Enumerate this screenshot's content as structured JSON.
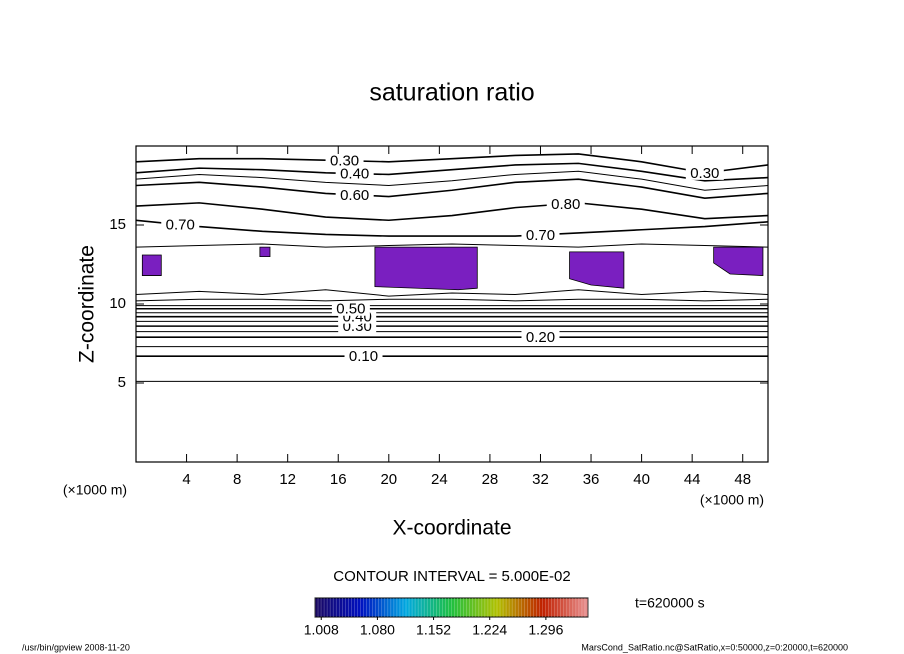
{
  "chart_data": {
    "type": "contour",
    "title": "saturation ratio",
    "x_label": "X-coordinate",
    "y_label": "Z-coordinate",
    "x_unit": "(×1000 m)",
    "y_unit": "(×1000 m)",
    "xlim": [
      0,
      50
    ],
    "ylim": [
      0,
      20
    ],
    "xticks": [
      4,
      8,
      12,
      16,
      20,
      24,
      28,
      32,
      36,
      40,
      44,
      48
    ],
    "yticks": [
      5,
      10,
      15
    ],
    "line_color": "#000000",
    "contour_x": [
      0,
      5,
      10,
      15,
      20,
      25,
      30,
      35,
      40,
      45,
      50
    ],
    "contours": [
      {
        "level": 0.05,
        "z": [
          5.1,
          5.1,
          5.1,
          5.1,
          5.1,
          5.1,
          5.1,
          5.1,
          5.1,
          5.1,
          5.1
        ]
      },
      {
        "level": 0.1,
        "label": "0.10",
        "label_x": [
          18
        ],
        "z": [
          6.7,
          6.7,
          6.7,
          6.7,
          6.7,
          6.7,
          6.7,
          6.7,
          6.7,
          6.7,
          6.7
        ]
      },
      {
        "level": 0.15,
        "z": [
          7.3,
          7.3,
          7.3,
          7.3,
          7.3,
          7.3,
          7.3,
          7.3,
          7.3,
          7.3,
          7.3
        ]
      },
      {
        "level": 0.2,
        "label": "0.20",
        "label_x": [
          32
        ],
        "z": [
          7.9,
          7.9,
          7.9,
          7.9,
          7.9,
          7.9,
          7.9,
          7.9,
          7.9,
          7.9,
          7.9
        ]
      },
      {
        "level": 0.25,
        "z": [
          8.25,
          8.25,
          8.25,
          8.25,
          8.25,
          8.25,
          8.25,
          8.25,
          8.25,
          8.25,
          8.25
        ]
      },
      {
        "level": 0.3,
        "label": "0.30",
        "label_x": [
          17.5
        ],
        "z": [
          8.6,
          8.6,
          8.6,
          8.6,
          8.6,
          8.6,
          8.6,
          8.6,
          8.6,
          8.6,
          8.6
        ]
      },
      {
        "level": 0.35,
        "z": [
          8.9,
          8.9,
          8.9,
          8.9,
          8.9,
          8.9,
          8.9,
          8.9,
          8.9,
          8.9,
          8.9
        ]
      },
      {
        "level": 0.4,
        "label": "0.40",
        "label_x": [
          17.5
        ],
        "z": [
          9.2,
          9.2,
          9.2,
          9.2,
          9.2,
          9.2,
          9.2,
          9.2,
          9.2,
          9.2,
          9.2
        ]
      },
      {
        "level": 0.45,
        "z": [
          9.45,
          9.45,
          9.45,
          9.45,
          9.45,
          9.45,
          9.45,
          9.45,
          9.45,
          9.45,
          9.45
        ]
      },
      {
        "level": 0.5,
        "label": "0.50",
        "label_x": [
          17
        ],
        "z": [
          9.7,
          9.7,
          9.7,
          9.7,
          9.7,
          9.7,
          9.7,
          9.7,
          9.7,
          9.7,
          9.7
        ]
      },
      {
        "level": 0.55,
        "z": [
          9.9,
          9.9,
          9.9,
          9.9,
          9.9,
          9.9,
          9.9,
          9.9,
          9.9,
          9.9,
          9.9
        ]
      },
      {
        "level": 0.6,
        "z": [
          10.2,
          10.3,
          10.3,
          10.2,
          10.3,
          10.3,
          10.2,
          10.3,
          10.3,
          10.2,
          10.3
        ]
      },
      {
        "level": 0.65,
        "z": [
          10.6,
          10.8,
          10.6,
          10.9,
          10.5,
          10.7,
          10.6,
          10.9,
          10.6,
          10.8,
          10.6
        ]
      },
      {
        "level": 0.95,
        "z": [
          13.6,
          13.7,
          13.8,
          13.6,
          13.7,
          13.8,
          13.7,
          13.6,
          13.8,
          13.7,
          13.6
        ]
      },
      {
        "level": 0.7,
        "label": "0.70",
        "label_x": [
          3.5,
          32
        ],
        "z": [
          15.3,
          14.9,
          14.6,
          14.4,
          14.3,
          14.3,
          14.3,
          14.5,
          14.7,
          14.9,
          15.2
        ]
      },
      {
        "level": 0.8,
        "label": "0.80",
        "label_x": [
          34
        ],
        "z": [
          16.2,
          16.4,
          16.0,
          15.5,
          15.3,
          15.6,
          16.1,
          16.4,
          16.0,
          15.4,
          15.6
        ]
      },
      {
        "level": 0.6,
        "label": "0.60",
        "label_x": [
          17.3
        ],
        "z": [
          17.5,
          17.7,
          17.4,
          17.0,
          16.8,
          17.2,
          17.7,
          17.9,
          17.4,
          16.7,
          17.0
        ]
      },
      {
        "level": 0.5,
        "z": [
          17.9,
          18.2,
          18.0,
          17.7,
          17.5,
          17.8,
          18.2,
          18.4,
          17.9,
          17.2,
          17.5
        ]
      },
      {
        "level": 0.4,
        "label": "0.40",
        "label_x": [
          17.3
        ],
        "z": [
          18.3,
          18.6,
          18.5,
          18.3,
          18.2,
          18.5,
          18.8,
          18.9,
          18.4,
          17.8,
          18.0
        ]
      },
      {
        "level": 0.3,
        "label": "0.30",
        "label_x": [
          16.5,
          45
        ],
        "z": [
          19.0,
          19.2,
          19.2,
          19.1,
          19.0,
          19.2,
          19.4,
          19.5,
          19.0,
          18.3,
          18.8
        ]
      }
    ],
    "shade_color": "#7a1fc0",
    "shaded": [
      {
        "x": [
          18.9,
          27.0,
          27.0,
          25.5,
          18.9
        ],
        "z": [
          13.6,
          13.6,
          11.0,
          10.9,
          11.1
        ]
      },
      {
        "x": [
          0.5,
          2.0,
          2.0,
          0.5
        ],
        "z": [
          13.1,
          13.1,
          11.8,
          11.8
        ]
      },
      {
        "x": [
          34.3,
          38.6,
          38.6,
          36.0,
          34.3
        ],
        "z": [
          13.3,
          13.3,
          11.0,
          11.2,
          11.6
        ]
      },
      {
        "x": [
          45.7,
          49.6,
          49.6,
          47.0,
          45.7
        ],
        "z": [
          13.6,
          13.6,
          11.8,
          11.9,
          12.6
        ]
      },
      {
        "x": [
          9.8,
          10.6,
          10.6,
          9.8
        ],
        "z": [
          13.6,
          13.6,
          13.0,
          13.0
        ]
      }
    ],
    "contour_interval": "CONTOUR INTERVAL = 5.000E-02",
    "time_label": "t=620000 s",
    "colorbar": {
      "lim": [
        1.0,
        1.35
      ],
      "ticks": [
        {
          "value": 1.008,
          "label": "1.008"
        },
        {
          "value": 1.08,
          "label": "1.080"
        },
        {
          "value": 1.152,
          "label": "1.152"
        },
        {
          "value": 1.224,
          "label": "1.224"
        },
        {
          "value": 1.296,
          "label": "1.296"
        }
      ],
      "colors": [
        "#1a0860",
        "#0010c0",
        "#00a8e0",
        "#20c040",
        "#b0c000",
        "#c02000",
        "#e89090"
      ]
    },
    "footer_left": "/usr/bin/gpview   2008-11-20",
    "footer_right": "MarsCond_SatRatio.nc@SatRatio,x=0:50000,z=0:20000,t=620000"
  }
}
